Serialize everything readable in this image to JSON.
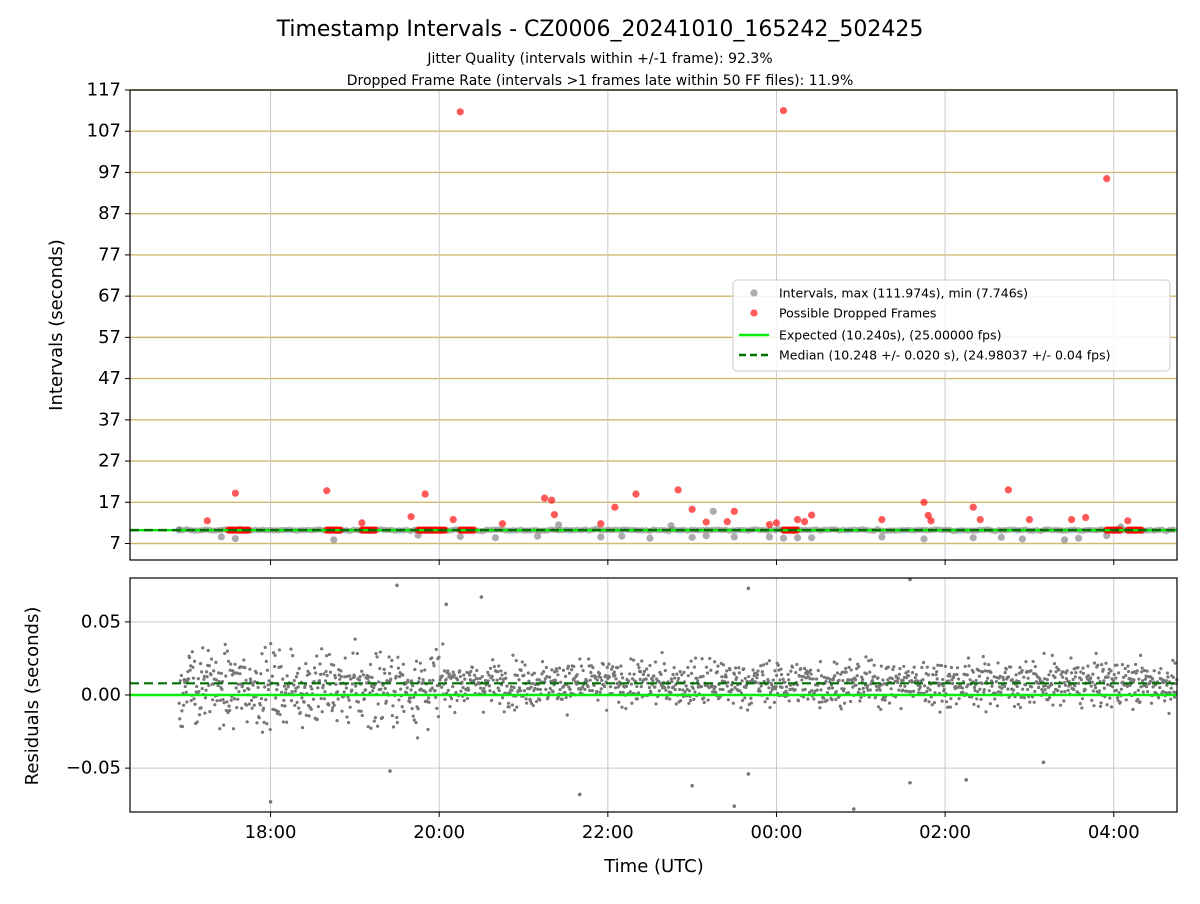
{
  "header": {
    "title": "Timestamp Intervals - CZ0006_20241010_165242_502425",
    "subtitle_1": "Jitter Quality (intervals within +/-1 frame): 92.3%",
    "subtitle_2": "Dropped Frame Rate (intervals >1 frames late within 50 FF files): 11.9%"
  },
  "colors": {
    "intervals": "#808080",
    "dropped": "#ff0000",
    "expected": "#00ee00",
    "median": "#007000",
    "hgrid_top": "#d2b970",
    "grid": "#c8c8c8"
  },
  "chart_data": [
    {
      "type": "scatter",
      "panel": "intervals",
      "xlabel": "",
      "ylabel": "Intervals (seconds)",
      "xlim": [
        "16:20",
        "04:45"
      ],
      "ylim": [
        3,
        117
      ],
      "y_ticks": [
        "7",
        "17",
        "27",
        "37",
        "47",
        "57",
        "67",
        "77",
        "87",
        "97",
        "107",
        "117"
      ],
      "grid": true,
      "legend": {
        "placement": "center-right",
        "entries": [
          "Intervals, max (111.974s), min (7.746s)",
          "Possible Dropped Frames",
          "Expected (10.240s), (25.00000 fps)",
          "Median (10.248 +/- 0.020 s), (24.98037 +/- 0.04 fps)"
        ]
      },
      "series": [
        {
          "name": "Intervals, max (111.974s), min (7.746s)",
          "type": "scatter",
          "summary": {
            "max": 111.974,
            "min": 7.746,
            "typical": 10.25
          },
          "points": [
            {
              "x": "16:55",
              "y": 10.3
            },
            {
              "x": "17:25",
              "y": 8.6
            },
            {
              "x": "17:35",
              "y": 8.2
            },
            {
              "x": "18:45",
              "y": 7.9
            },
            {
              "x": "19:45",
              "y": 9.0
            },
            {
              "x": "20:15",
              "y": 8.7
            },
            {
              "x": "20:40",
              "y": 8.4
            },
            {
              "x": "21:10",
              "y": 8.8
            },
            {
              "x": "21:25",
              "y": 11.5
            },
            {
              "x": "21:55",
              "y": 8.6
            },
            {
              "x": "22:10",
              "y": 8.8
            },
            {
              "x": "22:30",
              "y": 8.3
            },
            {
              "x": "22:45",
              "y": 11.3
            },
            {
              "x": "23:00",
              "y": 8.5
            },
            {
              "x": "23:10",
              "y": 8.9
            },
            {
              "x": "23:15",
              "y": 14.8
            },
            {
              "x": "23:30",
              "y": 8.6
            },
            {
              "x": "23:55",
              "y": 8.6
            },
            {
              "x": "00:05",
              "y": 8.3
            },
            {
              "x": "00:15",
              "y": 8.4
            },
            {
              "x": "00:25",
              "y": 8.4
            },
            {
              "x": "01:15",
              "y": 8.6
            },
            {
              "x": "01:45",
              "y": 8.1
            },
            {
              "x": "02:20",
              "y": 8.4
            },
            {
              "x": "02:40",
              "y": 8.5
            },
            {
              "x": "02:55",
              "y": 8.1
            },
            {
              "x": "03:25",
              "y": 7.9
            },
            {
              "x": "03:35",
              "y": 8.3
            },
            {
              "x": "03:55",
              "y": 8.9
            },
            {
              "x": "04:05",
              "y": 11.0
            }
          ]
        },
        {
          "name": "Possible Dropped Frames",
          "type": "scatter",
          "points": [
            {
              "x": "17:15",
              "y": 12.5
            },
            {
              "x": "17:35",
              "y": 19.2
            },
            {
              "x": "18:40",
              "y": 19.8
            },
            {
              "x": "19:05",
              "y": 12.0
            },
            {
              "x": "19:40",
              "y": 13.5
            },
            {
              "x": "19:50",
              "y": 19.0
            },
            {
              "x": "20:10",
              "y": 12.8
            },
            {
              "x": "20:15",
              "y": 111.7
            },
            {
              "x": "20:45",
              "y": 11.8
            },
            {
              "x": "21:15",
              "y": 18.0
            },
            {
              "x": "21:20",
              "y": 17.5
            },
            {
              "x": "21:22",
              "y": 14.0
            },
            {
              "x": "21:55",
              "y": 11.8
            },
            {
              "x": "22:05",
              "y": 15.8
            },
            {
              "x": "22:20",
              "y": 19.0
            },
            {
              "x": "22:50",
              "y": 20.0
            },
            {
              "x": "23:00",
              "y": 15.3
            },
            {
              "x": "23:10",
              "y": 12.2
            },
            {
              "x": "23:25",
              "y": 12.3
            },
            {
              "x": "23:30",
              "y": 14.8
            },
            {
              "x": "23:55",
              "y": 11.6
            },
            {
              "x": "00:00",
              "y": 12.0
            },
            {
              "x": "00:05",
              "y": 112.0
            },
            {
              "x": "00:15",
              "y": 12.8
            },
            {
              "x": "00:20",
              "y": 12.3
            },
            {
              "x": "00:25",
              "y": 13.9
            },
            {
              "x": "01:15",
              "y": 12.8
            },
            {
              "x": "01:45",
              "y": 17.0
            },
            {
              "x": "01:48",
              "y": 13.8
            },
            {
              "x": "01:50",
              "y": 12.5
            },
            {
              "x": "02:20",
              "y": 15.8
            },
            {
              "x": "02:25",
              "y": 12.8
            },
            {
              "x": "02:45",
              "y": 20.0
            },
            {
              "x": "03:00",
              "y": 12.8
            },
            {
              "x": "03:30",
              "y": 12.8
            },
            {
              "x": "03:40",
              "y": 13.3
            },
            {
              "x": "03:55",
              "y": 95.5
            },
            {
              "x": "04:10",
              "y": 12.5
            }
          ],
          "clusters": [
            {
              "from": "17:30",
              "to": "17:45",
              "y": 10.25
            },
            {
              "from": "18:40",
              "to": "18:50",
              "y": 10.25
            },
            {
              "from": "19:05",
              "to": "19:15",
              "y": 10.25
            },
            {
              "from": "19:45",
              "to": "20:05",
              "y": 10.25
            },
            {
              "from": "20:15",
              "to": "20:25",
              "y": 10.25
            },
            {
              "from": "00:05",
              "to": "00:15",
              "y": 10.25
            },
            {
              "from": "03:55",
              "to": "04:05",
              "y": 10.25
            },
            {
              "from": "04:10",
              "to": "04:20",
              "y": 10.25
            }
          ]
        },
        {
          "name": "Expected (10.240s), (25.00000 fps)",
          "type": "hline",
          "y": 10.24
        },
        {
          "name": "Median (10.248 +/- 0.020 s), (24.98037 +/- 0.04 fps)",
          "type": "hline",
          "y": 10.248
        }
      ]
    },
    {
      "type": "scatter",
      "panel": "residuals",
      "xlabel": "Time (UTC)",
      "ylabel": "Residuals (seconds)",
      "x_ticks": [
        "18:00",
        "20:00",
        "22:00",
        "00:00",
        "02:00",
        "04:00"
      ],
      "xlim": [
        "16:20",
        "04:45"
      ],
      "ylim": [
        -0.08,
        0.08
      ],
      "y_ticks": [
        "0.05",
        "0.00",
        "−0.05"
      ],
      "grid": true,
      "series": [
        {
          "name": "",
          "type": "scatter",
          "x_range": [
            "16:55",
            "04:45"
          ],
          "spread": {
            "early_until": "20:00",
            "early": 0.03,
            "late": 0.018,
            "center_late": 0.008
          },
          "outliers": [
            {
              "x": "18:00",
              "y": -0.073
            },
            {
              "x": "19:30",
              "y": 0.075
            },
            {
              "x": "19:25",
              "y": -0.052
            },
            {
              "x": "20:05",
              "y": 0.062
            },
            {
              "x": "20:30",
              "y": 0.067
            },
            {
              "x": "21:40",
              "y": -0.068
            },
            {
              "x": "23:00",
              "y": -0.062
            },
            {
              "x": "23:30",
              "y": -0.076
            },
            {
              "x": "23:40",
              "y": 0.073
            },
            {
              "x": "23:40",
              "y": -0.054
            },
            {
              "x": "00:55",
              "y": -0.078
            },
            {
              "x": "01:35",
              "y": -0.06
            },
            {
              "x": "01:35",
              "y": 0.079
            },
            {
              "x": "03:10",
              "y": -0.046
            },
            {
              "x": "02:15",
              "y": -0.058
            }
          ]
        },
        {
          "name": "Expected (10.240s), (25.00000 fps)",
          "type": "hline",
          "y": 0.0
        },
        {
          "name": "Median (10.248 +/- 0.020 s), (24.98037 +/- 0.04 fps)",
          "type": "hline",
          "y": 0.008
        }
      ]
    }
  ]
}
